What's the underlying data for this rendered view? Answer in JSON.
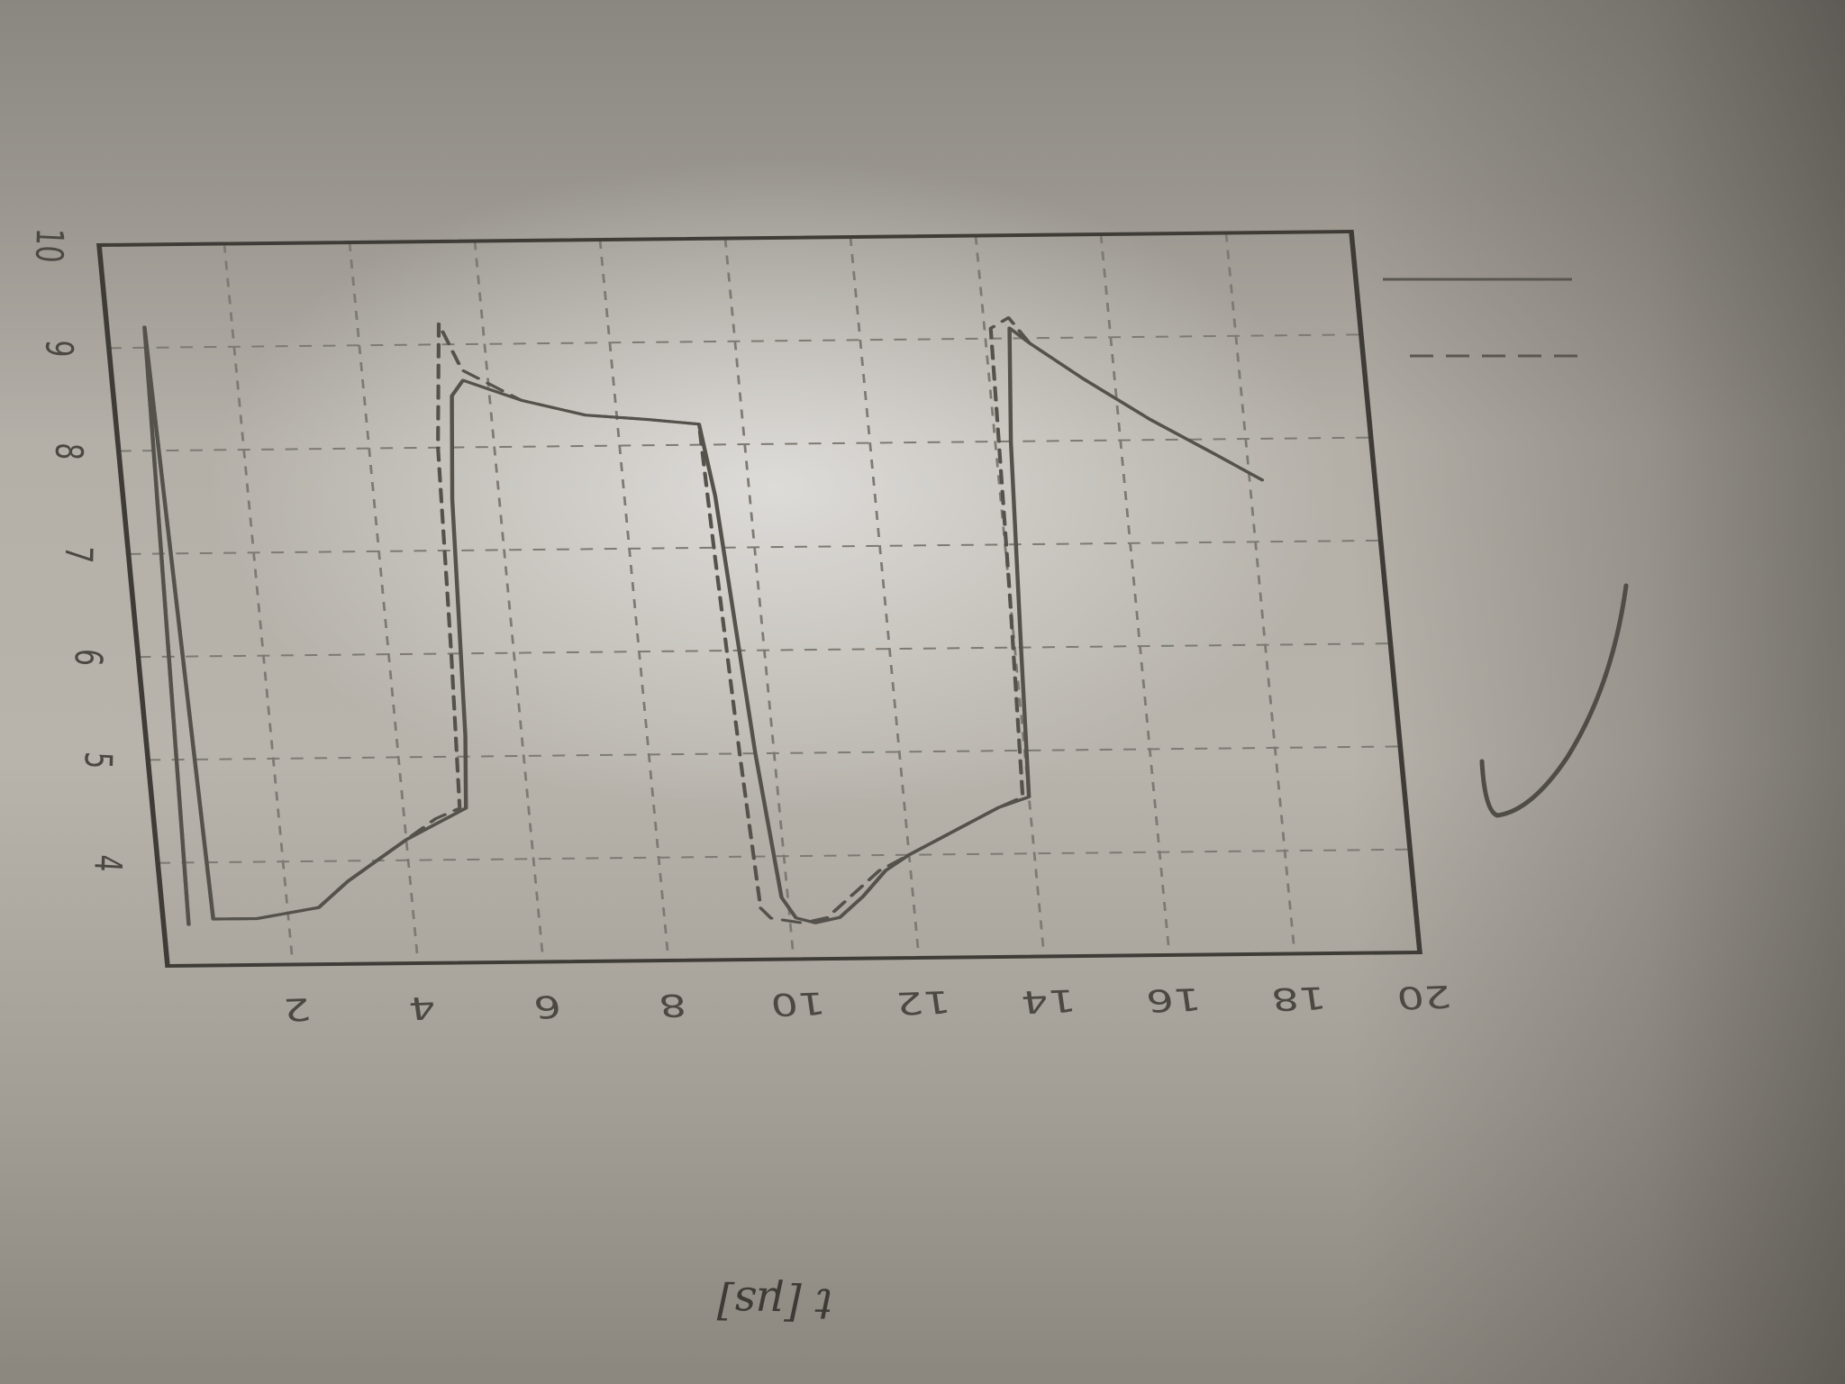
{
  "chart_data": {
    "type": "line",
    "title": "",
    "xlabel": "t [µs]",
    "ylabel": "",
    "xlim": [
      0,
      20
    ],
    "ylim": [
      3,
      10
    ],
    "x_ticks": [
      "2",
      "4",
      "6",
      "8",
      "10",
      "12",
      "14",
      "16",
      "18",
      "20"
    ],
    "y_ticks": [
      "4",
      "5",
      "6",
      "7",
      "8",
      "9",
      "10"
    ],
    "grid": true,
    "legend_position": "outside-right",
    "series": [
      {
        "name": "",
        "style": "solid",
        "color": "#55524c",
        "x": [
          0.4,
          0.6,
          0.8,
          1.5,
          2.5,
          3.0,
          3.5,
          4.0,
          4.5,
          5.0,
          5.1,
          5.25,
          5.4,
          5.6,
          6.5,
          7.5,
          8.5,
          9.3,
          9.45,
          9.7,
          9.9,
          10.1,
          10.4,
          10.8,
          11.2,
          11.6,
          12.0,
          12.5,
          13.0,
          13.5,
          14.0,
          14.1,
          14.25,
          14.4,
          14.7,
          15.5,
          16.5,
          17.5,
          18.2
        ],
        "y": [
          3.4,
          9.2,
          3.45,
          3.45,
          3.55,
          3.8,
          4.0,
          4.2,
          4.35,
          4.5,
          5.2,
          7.5,
          8.5,
          8.65,
          8.45,
          8.3,
          8.25,
          8.2,
          7.5,
          5.0,
          3.6,
          3.4,
          3.35,
          3.4,
          3.6,
          3.85,
          4.0,
          4.15,
          4.3,
          4.45,
          4.55,
          6.0,
          8.0,
          9.1,
          8.95,
          8.6,
          8.2,
          7.85,
          7.6
        ]
      },
      {
        "name": "",
        "style": "dashed",
        "color": "#55524c",
        "x": [
          0.4,
          0.6,
          0.8,
          1.5,
          2.5,
          3.0,
          3.5,
          4.0,
          4.5,
          4.9,
          5.0,
          5.1,
          5.3,
          5.6,
          6.5,
          7.5,
          8.5,
          9.3,
          9.35,
          9.45,
          9.55,
          9.7,
          10.2,
          10.6,
          11.0,
          11.5,
          12.0,
          12.5,
          13.0,
          13.5,
          13.9,
          14.0,
          14.1,
          14.4,
          14.7,
          15.5,
          16.5,
          17.5,
          18.2
        ],
        "y": [
          3.4,
          9.2,
          3.45,
          3.45,
          3.55,
          3.8,
          4.0,
          4.2,
          4.4,
          4.5,
          6.0,
          8.0,
          9.2,
          8.75,
          8.45,
          8.3,
          8.25,
          8.2,
          7.0,
          5.0,
          3.5,
          3.4,
          3.35,
          3.4,
          3.6,
          3.85,
          4.0,
          4.15,
          4.3,
          4.45,
          4.55,
          6.5,
          9.1,
          9.2,
          8.95,
          8.6,
          8.2,
          7.85,
          7.6
        ]
      }
    ],
    "legend_entries": [
      {
        "style": "solid",
        "label": ""
      },
      {
        "style": "dashed",
        "label": ""
      }
    ]
  },
  "colors": {
    "paper_light": "#c4c0b7",
    "pencil": "#4c4943",
    "grid": "#7d7a73"
  }
}
